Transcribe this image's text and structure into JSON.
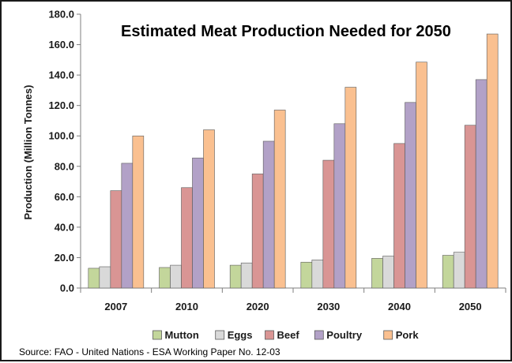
{
  "chart_data": {
    "type": "bar",
    "title": "Estimated Meat Production Needed for 2050",
    "ylabel": "Production (Million Tonnes)",
    "xlabel": "",
    "categories": [
      "2007",
      "2010",
      "2020",
      "2030",
      "2040",
      "2050"
    ],
    "ylim": [
      0,
      180
    ],
    "yticks": [
      "0.0",
      "20.0",
      "40.0",
      "60.0",
      "80.0",
      "100.0",
      "120.0",
      "140.0",
      "160.0",
      "180.0"
    ],
    "grid": false,
    "legend_position": "bottom",
    "series": [
      {
        "name": "Mutton",
        "color": "#c3d69b",
        "values": [
          13,
          13.5,
          15,
          17,
          19.5,
          21.5
        ]
      },
      {
        "name": "Eggs",
        "color": "#d9d9d9",
        "values": [
          14,
          15,
          16.5,
          18.5,
          21,
          23.5
        ]
      },
      {
        "name": "Beef",
        "color": "#d99594",
        "values": [
          64,
          66,
          75,
          84,
          95,
          107
        ]
      },
      {
        "name": "Poultry",
        "color": "#b2a1c7",
        "values": [
          82,
          85.5,
          96.5,
          108,
          122,
          137
        ]
      },
      {
        "name": "Pork",
        "color": "#fac090",
        "values": [
          100,
          104,
          117,
          132,
          148.5,
          167
        ]
      }
    ],
    "source": "Source:  FAO - United Nations - ESA Working Paper No. 12-03"
  }
}
